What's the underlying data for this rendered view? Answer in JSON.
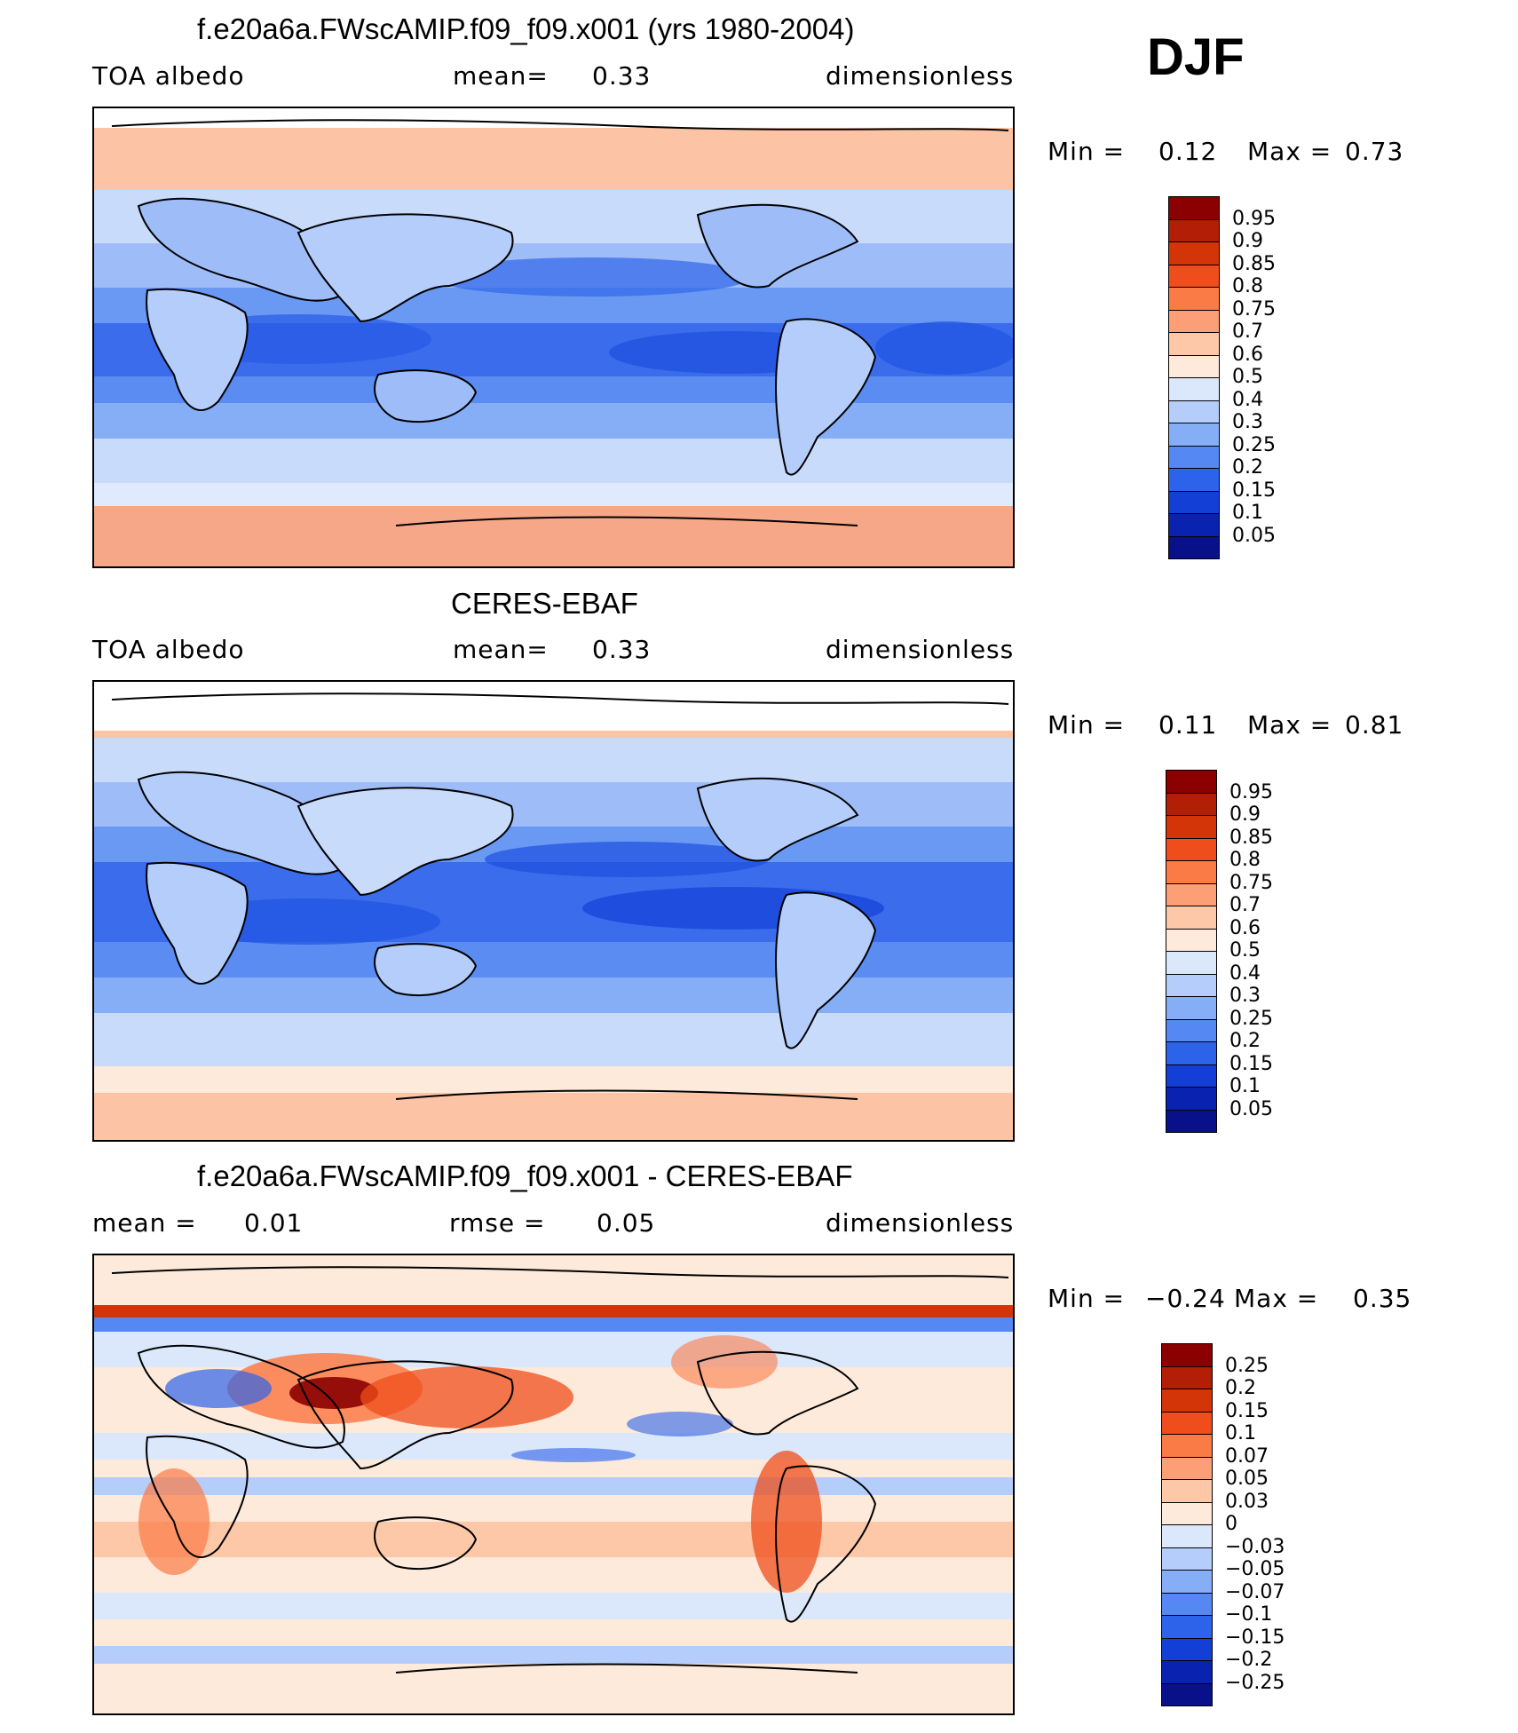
{
  "season": "DJF",
  "panels": [
    {
      "id": "model",
      "title": "f.e20a6a.FWscAMIP.f09_f09.x001 (yrs 1980-2004)",
      "left_label": "TOA  albedo",
      "center_label": "mean=",
      "center_value": "0.33",
      "right_label": "dimensionless",
      "min_label": "Min  =",
      "min_value": "0.12",
      "max_label": "Max  =",
      "max_value": "0.73",
      "colorbar": {
        "labels": [
          "0.95",
          "0.9",
          "0.85",
          "0.8",
          "0.75",
          "0.7",
          "0.6",
          "0.5",
          "0.4",
          "0.3",
          "0.25",
          "0.2",
          "0.15",
          "0.1",
          "0.05"
        ],
        "colors": [
          "#8b0000",
          "#b21e06",
          "#d43508",
          "#ef4d1b",
          "#fb7b46",
          "#fc9f76",
          "#fdc8a8",
          "#fdeadb",
          "#dbe7fb",
          "#b5cdfb",
          "#86aef6",
          "#5588f2",
          "#2d62ea",
          "#143fd7",
          "#0a22b0",
          "#08118a"
        ]
      }
    },
    {
      "id": "obs",
      "title": "CERES-EBAF",
      "left_label": "TOA  albedo",
      "center_label": "mean=",
      "center_value": "0.33",
      "right_label": "dimensionless",
      "min_label": "Min  =",
      "min_value": "0.11",
      "max_label": "Max  =",
      "max_value": "0.81",
      "colorbar": {
        "labels": [
          "0.95",
          "0.9",
          "0.85",
          "0.8",
          "0.75",
          "0.7",
          "0.6",
          "0.5",
          "0.4",
          "0.3",
          "0.25",
          "0.2",
          "0.15",
          "0.1",
          "0.05"
        ],
        "colors": [
          "#8b0000",
          "#b21e06",
          "#d43508",
          "#ef4d1b",
          "#fb7b46",
          "#fc9f76",
          "#fdc8a8",
          "#fdeadb",
          "#dbe7fb",
          "#b5cdfb",
          "#86aef6",
          "#5588f2",
          "#2d62ea",
          "#143fd7",
          "#0a22b0",
          "#08118a"
        ]
      }
    },
    {
      "id": "diff",
      "title": "f.e20a6a.FWscAMIP.f09_f09.x001 - CERES-EBAF",
      "left_label": "mean  =",
      "left_value": "0.01",
      "center_label": "rmse  =",
      "center_value": "0.05",
      "right_label": "dimensionless",
      "min_label": "Min  =",
      "min_value": "−0.24",
      "max_label": "Max  =",
      "max_value": "0.35",
      "colorbar": {
        "labels": [
          "0.25",
          "0.2",
          "0.15",
          "0.1",
          "0.07",
          "0.05",
          "0.03",
          "0",
          "−0.03",
          "−0.05",
          "−0.07",
          "−0.1",
          "−0.15",
          "−0.2",
          "−0.25"
        ],
        "colors": [
          "#8b0000",
          "#b21e06",
          "#d43508",
          "#ef4d1b",
          "#fb7b46",
          "#fc9f76",
          "#fdc8a8",
          "#fdeadb",
          "#dbe7fb",
          "#b5cdfb",
          "#86aef6",
          "#5588f2",
          "#2d62ea",
          "#143fd7",
          "#0a22b0",
          "#08118a"
        ]
      }
    }
  ]
}
